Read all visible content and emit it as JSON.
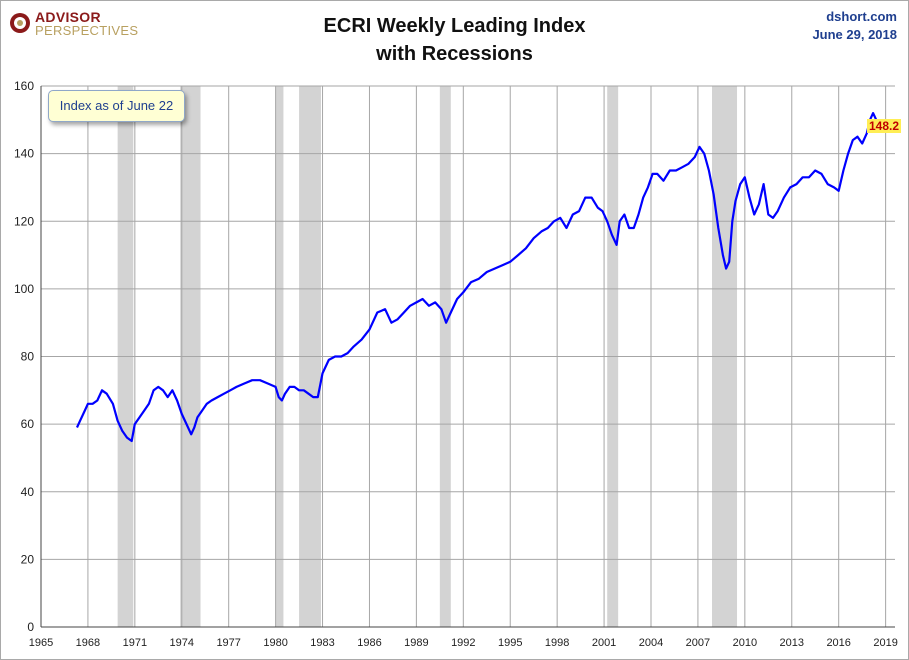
{
  "header": {
    "logo_line1": "ADVISOR",
    "logo_line2": "PERSPECTIVES",
    "title_line1": "ECRI Weekly Leading Index",
    "title_line2": "with Recessions",
    "source": "dshort.com",
    "date": "June 29, 2018"
  },
  "colors": {
    "line": "#0000ff",
    "recession": "#d3d3d3",
    "grid": "#a6a6a6",
    "brand": "#8b1a1a",
    "source": "#1f3f8f"
  },
  "chart_data": {
    "type": "line",
    "title": "ECRI Weekly Leading Index with Recessions",
    "annotation": "Index as of June 22",
    "last_value_label": "148.2",
    "xlabel": "",
    "ylabel": "",
    "xlim": [
      1965,
      2019.6
    ],
    "ylim": [
      0,
      160
    ],
    "x_ticks": [
      1965,
      1968,
      1971,
      1974,
      1977,
      1980,
      1983,
      1986,
      1989,
      1992,
      1995,
      1998,
      2001,
      2004,
      2007,
      2010,
      2013,
      2016,
      2019
    ],
    "y_ticks": [
      0,
      20,
      40,
      60,
      80,
      100,
      120,
      140,
      160
    ],
    "grid": true,
    "recessions": [
      [
        1969.9,
        1970.9
      ],
      [
        1973.9,
        1975.2
      ],
      [
        1980.0,
        1980.5
      ],
      [
        1981.5,
        1982.9
      ],
      [
        1990.5,
        1991.2
      ],
      [
        2001.2,
        2001.9
      ],
      [
        2007.9,
        2009.5
      ]
    ],
    "series": [
      {
        "x": [
          1967.3,
          1967.5,
          1967.8,
          1968.0,
          1968.3,
          1968.6,
          1968.9,
          1969.2,
          1969.6,
          1969.9,
          1970.2,
          1970.5,
          1970.8,
          1971.0,
          1971.3,
          1971.6,
          1971.9,
          1972.2,
          1972.5,
          1972.8,
          1973.1,
          1973.4,
          1973.7,
          1974.0,
          1974.3,
          1974.6,
          1974.8,
          1975.0,
          1975.3,
          1975.6,
          1975.9,
          1976.3,
          1976.7,
          1977.1,
          1977.5,
          1978.0,
          1978.5,
          1979.0,
          1979.5,
          1980.0,
          1980.2,
          1980.4,
          1980.6,
          1980.9,
          1981.2,
          1981.5,
          1981.8,
          1982.1,
          1982.4,
          1982.7,
          1983.0,
          1983.4,
          1983.8,
          1984.2,
          1984.6,
          1985.0,
          1985.5,
          1986.0,
          1986.5,
          1987.0,
          1987.4,
          1987.8,
          1988.2,
          1988.6,
          1989.0,
          1989.4,
          1989.8,
          1990.2,
          1990.6,
          1990.9,
          1991.2,
          1991.6,
          1992.0,
          1992.5,
          1993.0,
          1993.5,
          1994.0,
          1994.5,
          1995.0,
          1995.5,
          1996.0,
          1996.5,
          1997.0,
          1997.4,
          1997.8,
          1998.2,
          1998.6,
          1999.0,
          1999.4,
          1999.8,
          2000.2,
          2000.6,
          2000.9,
          2001.2,
          2001.5,
          2001.8,
          2002.0,
          2002.3,
          2002.6,
          2002.9,
          2003.2,
          2003.5,
          2003.8,
          2004.1,
          2004.4,
          2004.8,
          2005.2,
          2005.6,
          2006.0,
          2006.4,
          2006.8,
          2007.1,
          2007.4,
          2007.7,
          2008.0,
          2008.3,
          2008.6,
          2008.8,
          2009.0,
          2009.2,
          2009.4,
          2009.7,
          2010.0,
          2010.3,
          2010.6,
          2010.9,
          2011.2,
          2011.5,
          2011.8,
          2012.1,
          2012.5,
          2012.9,
          2013.3,
          2013.7,
          2014.1,
          2014.5,
          2014.9,
          2015.3,
          2015.7,
          2016.0,
          2016.3,
          2016.6,
          2016.9,
          2017.2,
          2017.5,
          2017.8,
          2018.0,
          2018.2,
          2018.4,
          2018.5
        ],
        "y": [
          59,
          61,
          64,
          66,
          66,
          67,
          70,
          69,
          66,
          61,
          58,
          56,
          55,
          60,
          62,
          64,
          66,
          70,
          71,
          70,
          68,
          70,
          67,
          63,
          60,
          57,
          59,
          62,
          64,
          66,
          67,
          68,
          69,
          70,
          71,
          72,
          73,
          73,
          72,
          71,
          68,
          67,
          69,
          71,
          71,
          70,
          70,
          69,
          68,
          68,
          75,
          79,
          80,
          80,
          81,
          83,
          85,
          88,
          93,
          94,
          90,
          91,
          93,
          95,
          96,
          97,
          95,
          96,
          94,
          90,
          93,
          97,
          99,
          102,
          103,
          105,
          106,
          107,
          108,
          110,
          112,
          115,
          117,
          118,
          120,
          121,
          118,
          122,
          123,
          127,
          127,
          124,
          123,
          120,
          116,
          113,
          120,
          122,
          118,
          118,
          122,
          127,
          130,
          134,
          134,
          132,
          135,
          135,
          136,
          137,
          139,
          142,
          140,
          135,
          128,
          118,
          110,
          106,
          108,
          120,
          126,
          131,
          133,
          127,
          122,
          125,
          131,
          122,
          121,
          123,
          127,
          130,
          131,
          133,
          133,
          135,
          134,
          131,
          130,
          129,
          135,
          140,
          144,
          145,
          143,
          146,
          150,
          152,
          150,
          148.2
        ]
      }
    ]
  }
}
